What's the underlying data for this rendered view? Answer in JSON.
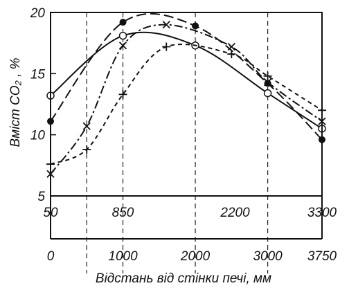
{
  "chart_data": {
    "type": "line",
    "ylabel": "Вміст CO₂ , %",
    "xlabel": "Відстань від стінки печі, мм",
    "ylim": [
      5,
      20
    ],
    "yticks": [
      5,
      10,
      15,
      20
    ],
    "top_axis": {
      "range": [
        50,
        3300
      ],
      "ticks": [
        "50",
        "850",
        "2200",
        "3300"
      ]
    },
    "bottom_axis": {
      "range": [
        0,
        3750
      ],
      "ticks": [
        "0",
        "1000",
        "2000",
        "3000",
        "3750"
      ]
    },
    "x_unit": "мм (bottom axis)",
    "grid": "vertical dashed lines at measurement positions",
    "legend": "none",
    "series": [
      {
        "marker": "filled-circle",
        "line": "long-dash",
        "x": [
          0,
          1000,
          2000,
          3000,
          3750
        ],
        "y": [
          11.1,
          19.2,
          18.9,
          14.2,
          9.6
        ]
      },
      {
        "marker": "open-circle",
        "line": "solid",
        "x": [
          0,
          1000,
          2000,
          3000,
          3750
        ],
        "y": [
          13.2,
          18.1,
          17.3,
          13.4,
          10.5
        ]
      },
      {
        "marker": "cross-x",
        "line": "dash-dot",
        "x": [
          0,
          500,
          1000,
          1600,
          2500,
          3000,
          3750
        ],
        "y": [
          6.8,
          10.7,
          17.3,
          19.0,
          17.2,
          14.3,
          11.1
        ]
      },
      {
        "marker": "plus",
        "line": "short-dash",
        "x": [
          0,
          500,
          1000,
          1600,
          2500,
          3000,
          3750
        ],
        "y": [
          7.6,
          8.8,
          13.3,
          17.2,
          16.6,
          14.8,
          12.0
        ]
      }
    ]
  }
}
